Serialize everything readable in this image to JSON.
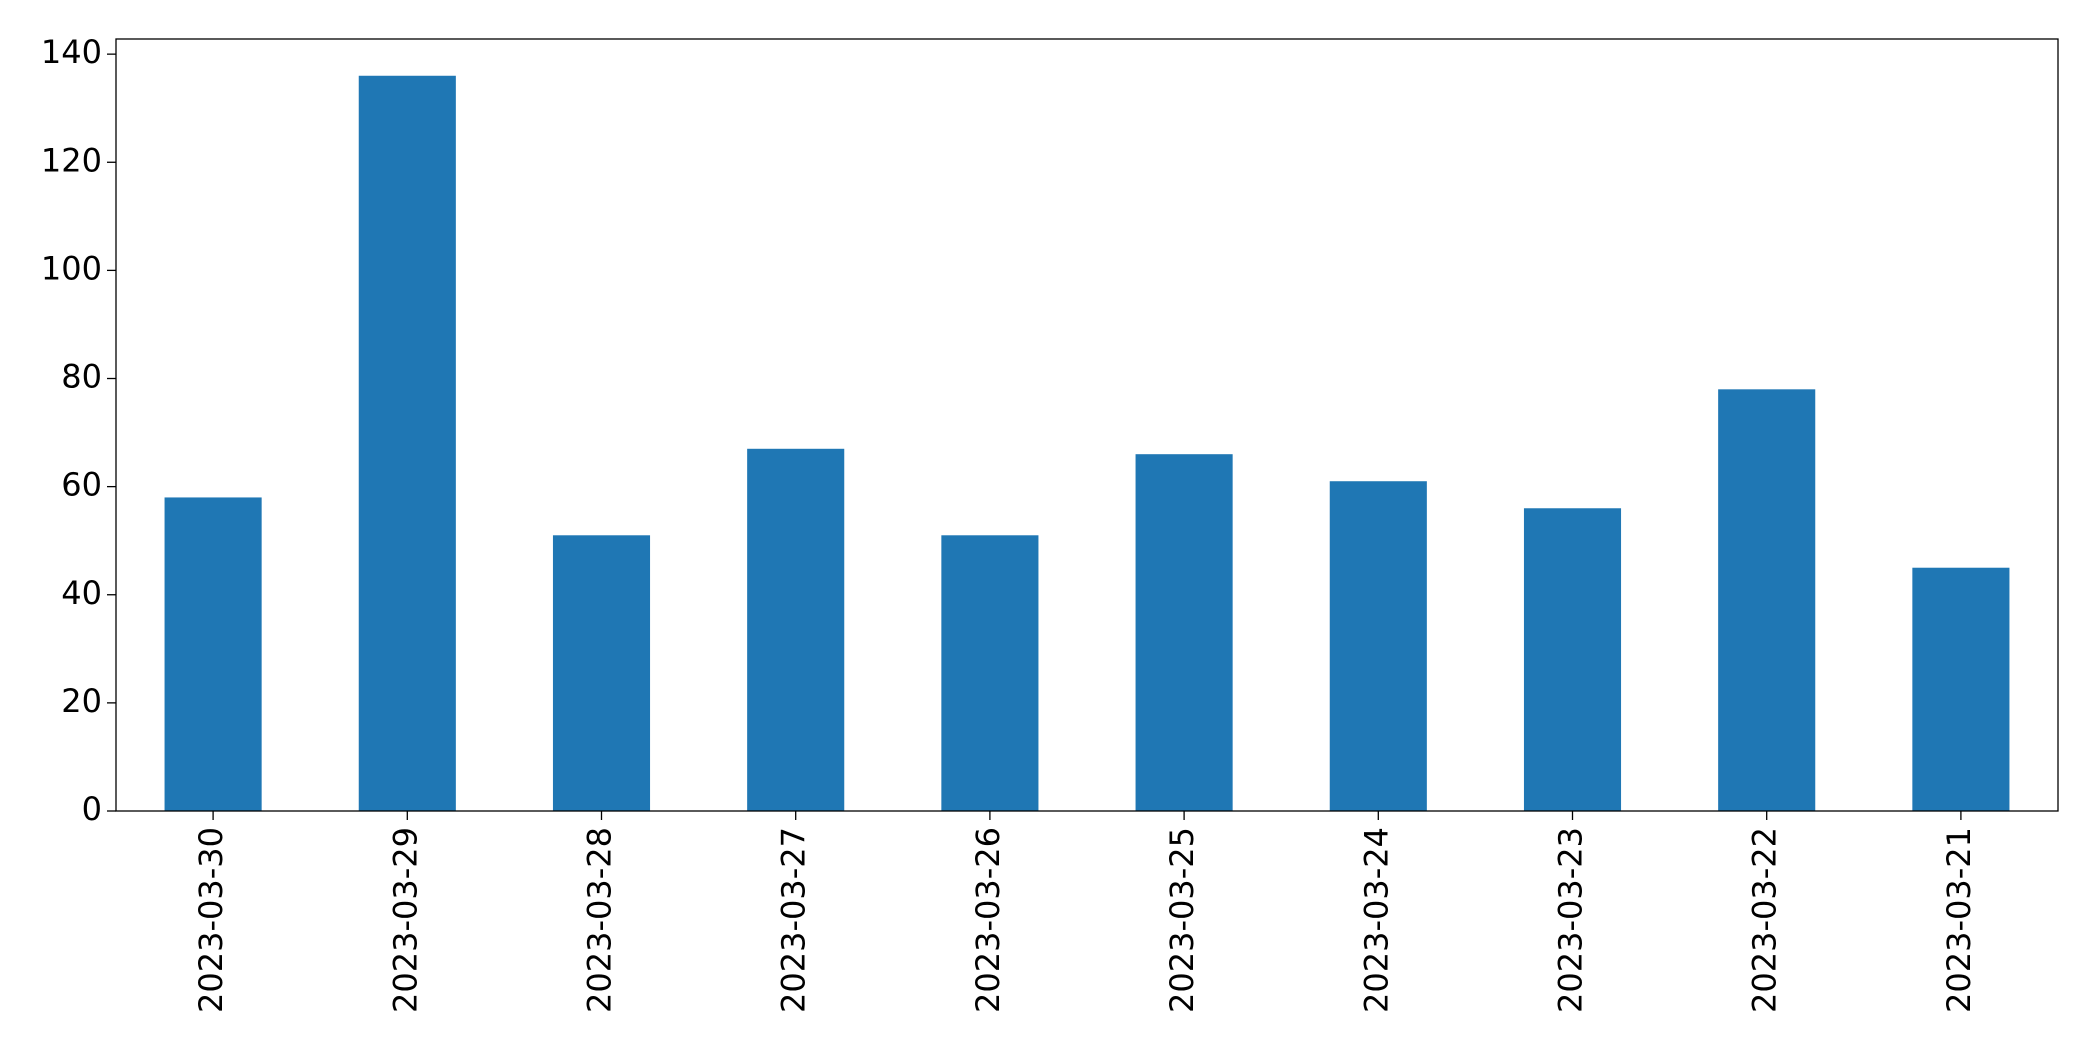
{
  "chart_data": {
    "type": "bar",
    "categories": [
      "2023-03-30",
      "2023-03-29",
      "2023-03-28",
      "2023-03-27",
      "2023-03-26",
      "2023-03-25",
      "2023-03-24",
      "2023-03-23",
      "2023-03-22",
      "2023-03-21"
    ],
    "values": [
      58,
      136,
      51,
      67,
      51,
      66,
      61,
      56,
      78,
      45
    ],
    "color": "#1f77b4",
    "ylim": [
      0,
      142.8
    ],
    "yticks": [
      0,
      20,
      40,
      60,
      80,
      100,
      120,
      140
    ],
    "grid": false
  }
}
